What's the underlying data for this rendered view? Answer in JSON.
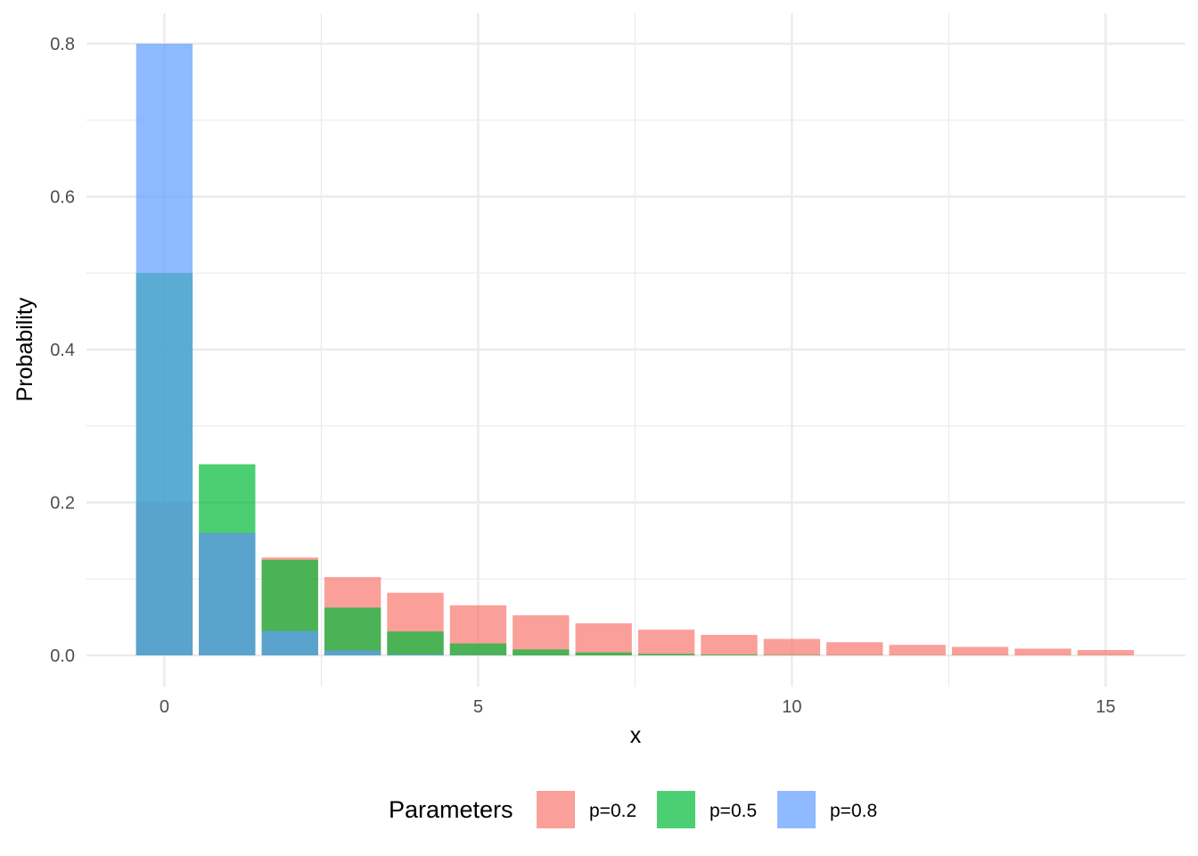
{
  "chart_data": {
    "type": "bar",
    "xlabel": "x",
    "ylabel": "Probability",
    "xlim": [
      -0.5,
      15.5
    ],
    "ylim": [
      0,
      0.8
    ],
    "xticks": [
      0,
      5,
      10,
      15
    ],
    "xtick_labels": [
      "0",
      "5",
      "10",
      "15"
    ],
    "yticks": [
      0.0,
      0.2,
      0.4,
      0.6,
      0.8
    ],
    "ytick_labels": [
      "0.0",
      "0.2",
      "0.4",
      "0.6",
      "0.8"
    ],
    "grid": true,
    "legend": {
      "title": "Parameters",
      "placement": "bottom"
    },
    "x": [
      0,
      1,
      2,
      3,
      4,
      5,
      6,
      7,
      8,
      9,
      10,
      11,
      12,
      13,
      14,
      15
    ],
    "series": [
      {
        "name": "p=0.2",
        "color": "#F8766D",
        "values": [
          0.2,
          0.16,
          0.128,
          0.1024,
          0.0819,
          0.0655,
          0.0524,
          0.0419,
          0.0336,
          0.0268,
          0.0215,
          0.0172,
          0.0137,
          0.011,
          0.0088,
          0.007
        ]
      },
      {
        "name": "p=0.5",
        "color": "#00BA38",
        "values": [
          0.5,
          0.25,
          0.125,
          0.0625,
          0.0313,
          0.0156,
          0.0078,
          0.0039,
          0.002,
          0.001,
          0.0005,
          0.0002,
          0.0001,
          0.0001,
          0.0,
          0.0
        ]
      },
      {
        "name": "p=0.8",
        "color": "#619CFF",
        "values": [
          0.8,
          0.16,
          0.032,
          0.0064,
          0.0013,
          0.0003,
          0.0001,
          0.0,
          0.0,
          0.0,
          0.0,
          0.0,
          0.0,
          0.0,
          0.0,
          0.0
        ]
      }
    ]
  }
}
